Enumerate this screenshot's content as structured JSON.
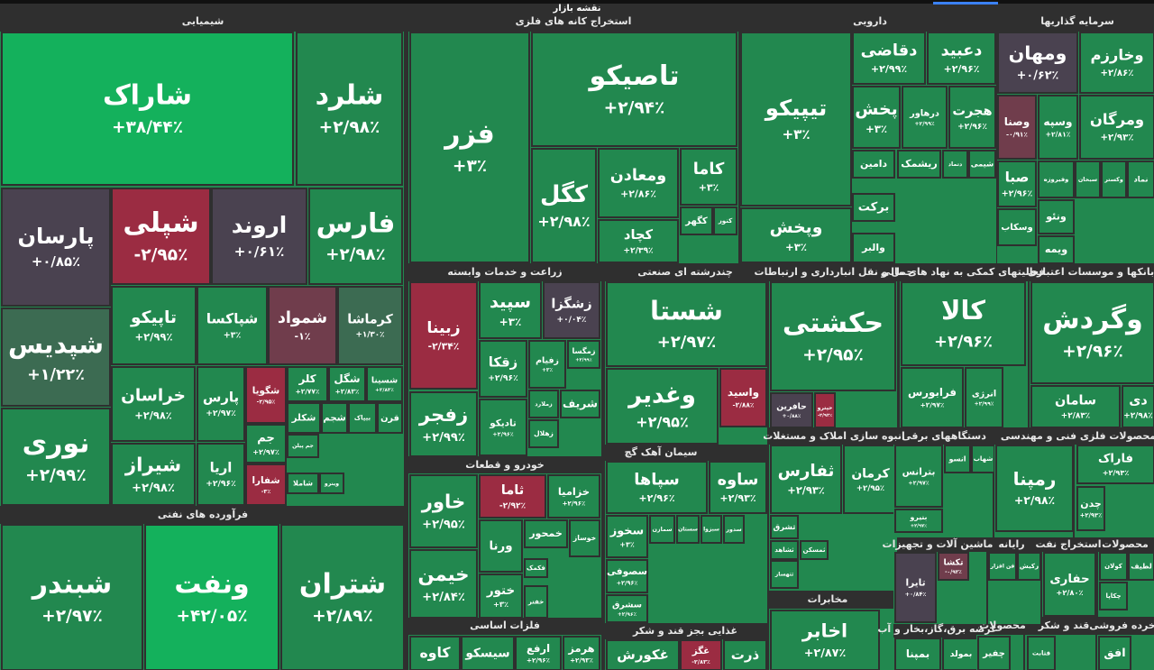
{
  "header": {
    "title": "نقشه بازار"
  },
  "sectors": [
    {
      "title": "شیمیایی",
      "tiles": [
        {
          "name": "شاراک",
          "change": "+۳۸/۴۴٪"
        },
        {
          "name": "شلرد",
          "change": "+۲/۹۸٪"
        },
        {
          "name": "پارسان",
          "change": "+۰/۸۵٪"
        },
        {
          "name": "شپلی",
          "change": "-۲/۹۵٪"
        },
        {
          "name": "اروند",
          "change": "+۰/۶۱٪"
        },
        {
          "name": "فارس",
          "change": "+۲/۹۸٪"
        },
        {
          "name": "شپدیس",
          "change": "+۱/۲۲٪"
        },
        {
          "name": "نوری",
          "change": "+۲/۹۹٪"
        },
        {
          "name": "تاپیکو",
          "change": "+۲/۹۹٪"
        },
        {
          "name": "شپاکسا",
          "change": "+۳٪"
        },
        {
          "name": "شمواد",
          "change": "-۱٪"
        },
        {
          "name": "کرماشا",
          "change": "+۱/۳۰٪"
        },
        {
          "name": "خراسان",
          "change": "+۲/۹۸٪"
        },
        {
          "name": "شیراز",
          "change": "+۲/۹۸٪"
        },
        {
          "name": "پارس",
          "change": "+۲/۹۷٪"
        },
        {
          "name": "اریا",
          "change": "+۲/۹۶٪"
        },
        {
          "name": "شگویا",
          "change": "-۲/۹۵٪"
        },
        {
          "name": "جم",
          "change": "+۲/۹۷٪"
        },
        {
          "name": "شفارا",
          "change": "-۳٪"
        },
        {
          "name": "کلر",
          "change": "+۲/۷۷٪"
        },
        {
          "name": "شگل",
          "change": "+۲/۸۳٪"
        },
        {
          "name": "شسینا",
          "change": "+۲/۸۳٪"
        },
        {
          "name": "شکلر"
        },
        {
          "name": "شجم"
        },
        {
          "name": "بیپاک"
        },
        {
          "name": "قرن"
        },
        {
          "name": "جم پیلن"
        },
        {
          "name": "شاملا"
        },
        {
          "name": "وینرو"
        }
      ]
    },
    {
      "title": "فرآورده های نفتی",
      "tiles": [
        {
          "name": "شبندر",
          "change": "+۲/۹۷٪"
        },
        {
          "name": "ونفت",
          "change": "+۴۲/۰۵٪"
        },
        {
          "name": "شتران",
          "change": "+۲/۸۹٪"
        }
      ]
    },
    {
      "title": "استخراج کانه های فلزی",
      "tiles": [
        {
          "name": "فزر",
          "change": "+۳٪"
        },
        {
          "name": "تاصیکو",
          "change": "+۲/۹۴٪"
        },
        {
          "name": "کگل",
          "change": "+۲/۹۸٪"
        },
        {
          "name": "ومعادن",
          "change": "+۲/۸۶٪"
        },
        {
          "name": "کاما",
          "change": "+۳٪"
        },
        {
          "name": "کچاد",
          "change": "+۲/۳۹٪"
        },
        {
          "name": "کگهر"
        },
        {
          "name": "کنور"
        }
      ]
    },
    {
      "title": "دارویی",
      "tiles": [
        {
          "name": "تیپیکو",
          "change": "+۳٪"
        },
        {
          "name": "وپخش",
          "change": "+۳٪"
        },
        {
          "name": "دقاضی",
          "change": "+۲/۹۹٪"
        },
        {
          "name": "دعبید",
          "change": "+۲/۹۶٪"
        },
        {
          "name": "پخش",
          "change": "+۳٪"
        },
        {
          "name": "درهاور",
          "change": "+۲/۹۹٪"
        },
        {
          "name": "هجرت",
          "change": "+۲/۹۶٪"
        },
        {
          "name": "دامین"
        },
        {
          "name": "ریشمک"
        },
        {
          "name": "دتماد"
        },
        {
          "name": "شیمی"
        },
        {
          "name": "برکت"
        },
        {
          "name": "والبر"
        }
      ]
    },
    {
      "title": "سرمایه گذاریها",
      "tiles": [
        {
          "name": "ومهان",
          "change": "+۰/۶۲٪"
        },
        {
          "name": "وخارزم",
          "change": "+۲/۸۶٪"
        },
        {
          "name": "وصنا",
          "change": "-۰/۹۱٪"
        },
        {
          "name": "وسپه",
          "change": "+۲/۸۱٪"
        },
        {
          "name": "ومرگان",
          "change": "+۲/۹۳٪"
        },
        {
          "name": "صبا",
          "change": "+۲/۹۶٪"
        },
        {
          "name": "وفیروزه"
        },
        {
          "name": "سبحان"
        },
        {
          "name": "وکستر"
        },
        {
          "name": "نماد"
        },
        {
          "name": "ونئو"
        },
        {
          "name": "وسکاب"
        },
        {
          "name": "ویمه"
        }
      ]
    },
    {
      "title": "زراعت و خدمات وابسته",
      "tiles": [
        {
          "name": "زبینا",
          "change": "-۲/۳۴٪"
        },
        {
          "name": "سپید",
          "change": "+۳٪"
        },
        {
          "name": "زشگزا",
          "change": "+۰/۰۴٪"
        },
        {
          "name": "زفجر",
          "change": "+۲/۹۹٪"
        },
        {
          "name": "زقکا",
          "change": "+۲/۹۶٪"
        },
        {
          "name": "زفیام",
          "change": "+۳٪"
        },
        {
          "name": "زمگسا",
          "change": "+۲/۹۹٪"
        },
        {
          "name": "تادیکو",
          "change": "+۲/۹۶٪"
        },
        {
          "name": "زملارد"
        },
        {
          "name": "شریف"
        },
        {
          "name": "زهلال"
        }
      ]
    },
    {
      "title": "چندرشته ای صنعتی",
      "tiles": [
        {
          "name": "شستا",
          "change": "+۲/۹۷٪"
        },
        {
          "name": "وغدیر",
          "change": "+۲/۹۵٪"
        },
        {
          "name": "واسید",
          "change": "-۲/۸۸٪"
        }
      ]
    },
    {
      "title": "حمل و نقل انبارداری و ارتباطات",
      "tiles": [
        {
          "name": "حکشتی",
          "change": "+۲/۹۵٪"
        },
        {
          "name": "حافرین",
          "change": "+۰/۸۸٪"
        },
        {
          "name": "حپترو",
          "change": "-۲/۹۲٪"
        }
      ]
    },
    {
      "title": "فعالیتهای کمکی به نهاد های مالی",
      "tiles": [
        {
          "name": "کالا",
          "change": "+۲/۹۶٪"
        },
        {
          "name": "فرابورس",
          "change": "+۲/۹۷٪"
        },
        {
          "name": "انرژی",
          "change": "+۲/۹۹٪"
        }
      ]
    },
    {
      "title": "بانکها و موسسات اعتباری",
      "tiles": [
        {
          "name": "وگردش",
          "change": "+۲/۹۶٪"
        },
        {
          "name": "سامان",
          "change": "+۲/۸۳٪"
        },
        {
          "name": "دی",
          "change": "+۲/۹۸٪"
        }
      ]
    },
    {
      "title": "سیمان آهک گچ",
      "tiles": [
        {
          "name": "سپاها",
          "change": "+۲/۹۶٪"
        },
        {
          "name": "ساوه",
          "change": "+۲/۹۳٪"
        },
        {
          "name": "سخوز",
          "change": "+۳٪"
        },
        {
          "name": "سصوفی",
          "change": "+۲/۹۶٪"
        },
        {
          "name": "سشرق",
          "change": "+۲/۹۶٪"
        },
        {
          "name": "سمازن"
        },
        {
          "name": "سستان"
        },
        {
          "name": "سبزوا"
        },
        {
          "name": "سدور"
        }
      ]
    },
    {
      "title": "خودرو و قطعات",
      "tiles": [
        {
          "name": "خاور",
          "change": "+۲/۹۵٪"
        },
        {
          "name": "خیمن",
          "change": "+۲/۸۴٪"
        },
        {
          "name": "ثاما",
          "change": "-۲/۹۲٪"
        },
        {
          "name": "خزامیا",
          "change": "+۲/۹۶٪"
        },
        {
          "name": "ورنا"
        },
        {
          "name": "خمحور"
        },
        {
          "name": "خوساز"
        },
        {
          "name": "ختور",
          "change": "+۳٪"
        },
        {
          "name": "فکمک"
        },
        {
          "name": "خفتر"
        }
      ]
    },
    {
      "title": "انبوه سازی املاک و مستغلات",
      "tiles": [
        {
          "name": "ثفارس",
          "change": "+۲/۹۳٪"
        },
        {
          "name": "کرمان",
          "change": "+۲/۹۵٪"
        },
        {
          "name": "ثشرق"
        },
        {
          "name": "ثشاهد"
        },
        {
          "name": "ثمسکن"
        },
        {
          "name": "ثتهساز"
        }
      ]
    },
    {
      "title": "دستگاههای برقی",
      "tiles": [
        {
          "name": "بترانس",
          "change": "+۲/۹۷٪"
        },
        {
          "name": "انسو"
        },
        {
          "name": "شهاب"
        },
        {
          "name": "بنیرو",
          "change": "+۲/۹۷٪"
        }
      ]
    },
    {
      "title": "فنی و مهندسی",
      "tiles": [
        {
          "name": "رمپنا",
          "change": "+۲/۹۸٪"
        }
      ]
    },
    {
      "title": "محصولات فلزی",
      "tiles": [
        {
          "name": "فاراک",
          "change": "+۲/۹۳٪"
        },
        {
          "name": "چدن",
          "change": "+۲/۹۳٪"
        }
      ]
    },
    {
      "title": "ماشین آلات و تجهیزات",
      "tiles": [
        {
          "name": "تایرا",
          "change": "+۰/۸۴٪"
        },
        {
          "name": "تکشا",
          "change": "-۰/۹۲٪"
        }
      ]
    },
    {
      "title": "رایانه",
      "tiles": [
        {
          "name": "فن افزار"
        },
        {
          "name": "رکیش"
        }
      ]
    },
    {
      "title": "استخراج نفت",
      "tiles": [
        {
          "name": "حفاری",
          "change": "+۲/۸۰٪"
        }
      ]
    },
    {
      "title": "محصولات",
      "tiles": [
        {
          "name": "کولان"
        },
        {
          "name": "لطیف"
        },
        {
          "name": "چکاپا"
        }
      ]
    },
    {
      "title": "فلزات اساسی",
      "tiles": [
        {
          "name": "کاوه"
        },
        {
          "name": "سیسکو"
        },
        {
          "name": "ارفع",
          "change": "+۲/۹۶٪"
        },
        {
          "name": "هرمز",
          "change": "+۲/۹۳٪"
        }
      ]
    },
    {
      "title": "غذایی بجز قند و شکر",
      "tiles": [
        {
          "name": "غکورش"
        },
        {
          "name": "غگز",
          "change": "-۲/۸۳٪"
        },
        {
          "name": "ذرت"
        }
      ]
    },
    {
      "title": "مخابرات",
      "tiles": [
        {
          "name": "اخابر",
          "change": "+۲/۸۷٪"
        }
      ]
    },
    {
      "title": "عرضه برق،گاز،بخار و آب",
      "tiles": [
        {
          "name": "بمپنا"
        },
        {
          "name": "بمولد"
        }
      ]
    },
    {
      "title": "محصولات",
      "tiles": [
        {
          "name": "چفیر"
        }
      ]
    },
    {
      "title": "قند و شکر",
      "tiles": [
        {
          "name": "قثابت"
        }
      ]
    },
    {
      "title": "خرده فروشی",
      "tiles": [
        {
          "name": "افق"
        }
      ]
    }
  ]
}
